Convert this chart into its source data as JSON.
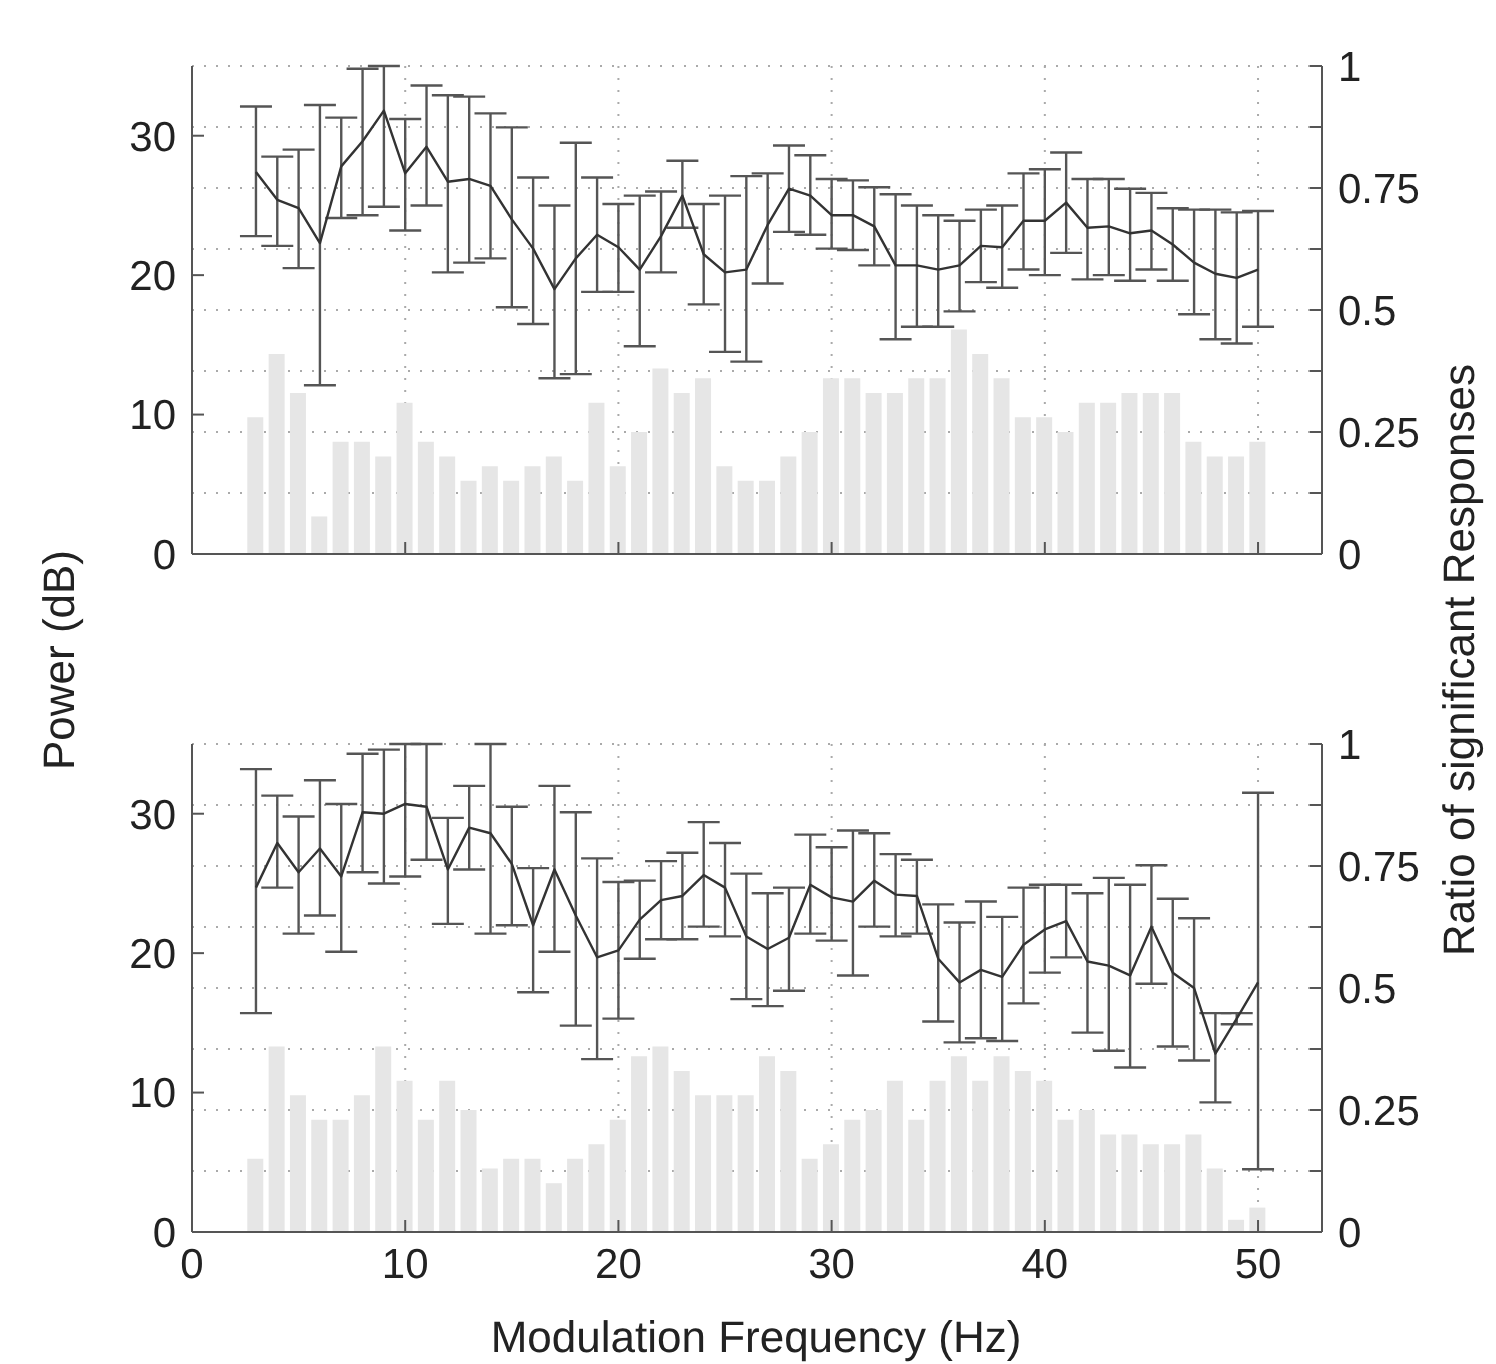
{
  "chart_data": [
    {
      "type": "bar",
      "ylabel": "Power (dB)",
      "y2label": "Ratio of significant Responses",
      "x": [
        3,
        4,
        5,
        6,
        7,
        8,
        9,
        10,
        11,
        12,
        13,
        14,
        15,
        16,
        17,
        18,
        19,
        20,
        21,
        22,
        23,
        24,
        25,
        26,
        27,
        28,
        29,
        30,
        31,
        32,
        33,
        34,
        35,
        36,
        37,
        38,
        39,
        40,
        41,
        42,
        43,
        44,
        45,
        46,
        47,
        48,
        49,
        50
      ],
      "xlim": [
        0,
        53
      ],
      "xticks": [
        0,
        10,
        20,
        30,
        40,
        50
      ],
      "ylim": [
        0,
        35
      ],
      "yticks": [
        0,
        10,
        20,
        30
      ],
      "y2lim": [
        0,
        1
      ],
      "y2ticks": [
        0,
        {
          "value": 0.125,
          "label": null
        },
        0.25,
        {
          "value": 0.375,
          "label": null
        },
        0.5,
        {
          "value": 0.625,
          "label": null
        },
        0.75,
        {
          "value": 0.875,
          "label": null
        },
        1
      ],
      "grid": true,
      "tick_labels": "y",
      "marker": "none",
      "line_style": "solid",
      "series": [
        {
          "axis": "y2",
          "color": "#e6e6e6",
          "values": [
            0.28,
            0.41,
            0.33,
            0.077,
            0.23,
            0.23,
            0.2,
            0.31,
            0.23,
            0.2,
            0.15,
            0.18,
            0.15,
            0.18,
            0.2,
            0.15,
            0.31,
            0.18,
            0.25,
            0.38,
            0.33,
            0.36,
            0.18,
            0.15,
            0.15,
            0.2,
            0.25,
            0.36,
            0.36,
            0.33,
            0.33,
            0.36,
            0.36,
            0.46,
            0.41,
            0.36,
            0.28,
            0.28,
            0.25,
            0.31,
            0.31,
            0.33,
            0.33,
            0.33,
            0.23,
            0.2,
            0.2,
            0.23
          ]
        },
        {
          "type": "line",
          "color": "#333333",
          "values": [
            27.4,
            25.4,
            24.8,
            22.3,
            27.8,
            29.6,
            31.8,
            27.3,
            29.2,
            26.7,
            26.9,
            26.4,
            24.0,
            21.9,
            19.0,
            21.2,
            22.9,
            22.0,
            20.4,
            22.8,
            25.7,
            21.5,
            20.2,
            20.4,
            23.6,
            26.2,
            25.7,
            24.3,
            24.3,
            23.5,
            20.7,
            20.7,
            20.4,
            20.7,
            22.1,
            22.0,
            23.9,
            23.9,
            25.2,
            23.4,
            23.5,
            23.0,
            23.2,
            22.2,
            20.9,
            20.1,
            19.8,
            20.4
          ],
          "errors": [
            [
              22.8,
              32.1
            ],
            [
              22.1,
              28.5
            ],
            [
              20.5,
              29.0
            ],
            [
              12.1,
              32.2
            ],
            [
              24.1,
              31.3
            ],
            [
              24.3,
              34.8
            ],
            [
              24.9,
              35
            ],
            [
              23.2,
              31.2
            ],
            [
              25.0,
              33.6
            ],
            [
              20.2,
              32.9
            ],
            [
              20.9,
              32.8
            ],
            [
              21.2,
              31.6
            ],
            [
              17.7,
              30.6
            ],
            [
              16.5,
              27.0
            ],
            [
              12.6,
              25.0
            ],
            [
              12.9,
              29.5
            ],
            [
              18.8,
              27.0
            ],
            [
              18.8,
              25.1
            ],
            [
              14.9,
              25.7
            ],
            [
              20.2,
              26.0
            ],
            [
              23.4,
              28.2
            ],
            [
              17.9,
              25.1
            ],
            [
              14.5,
              25.7
            ],
            [
              13.8,
              27.1
            ],
            [
              19.4,
              27.3
            ],
            [
              23.1,
              29.3
            ],
            [
              22.9,
              28.6
            ],
            [
              21.9,
              26.9
            ],
            [
              21.8,
              26.8
            ],
            [
              20.7,
              26.3
            ],
            [
              15.4,
              25.8
            ],
            [
              16.3,
              25.0
            ],
            [
              16.3,
              24.3
            ],
            [
              17.4,
              23.9
            ],
            [
              19.5,
              24.7
            ],
            [
              19.1,
              25.0
            ],
            [
              20.4,
              27.3
            ],
            [
              20.0,
              27.6
            ],
            [
              21.6,
              28.8
            ],
            [
              19.7,
              26.9
            ],
            [
              20.0,
              26.9
            ],
            [
              19.6,
              26.2
            ],
            [
              20.4,
              25.9
            ],
            [
              19.6,
              24.8
            ],
            [
              17.2,
              24.7
            ],
            [
              15.4,
              24.7
            ],
            [
              15.1,
              24.5
            ],
            [
              16.3,
              24.6
            ]
          ]
        }
      ]
    },
    {
      "type": "bar",
      "xlabel": "Modulation Frequency (Hz)",
      "x": [
        3,
        4,
        5,
        6,
        7,
        8,
        9,
        10,
        11,
        12,
        13,
        14,
        15,
        16,
        17,
        18,
        19,
        20,
        21,
        22,
        23,
        24,
        25,
        26,
        27,
        28,
        29,
        30,
        31,
        32,
        33,
        34,
        35,
        36,
        37,
        38,
        39,
        40,
        41,
        42,
        43,
        44,
        45,
        46,
        47,
        48,
        49,
        50
      ],
      "xlim": [
        0,
        53
      ],
      "xticks": [
        0,
        10,
        20,
        30,
        40,
        50
      ],
      "ylim": [
        0,
        35
      ],
      "yticks": [
        0,
        10,
        20,
        30
      ],
      "y2lim": [
        0,
        1
      ],
      "y2ticks": [
        0,
        {
          "value": 0.125,
          "label": null
        },
        0.25,
        {
          "value": 0.375,
          "label": null
        },
        0.5,
        {
          "value": 0.625,
          "label": null
        },
        0.75,
        {
          "value": 0.875,
          "label": null
        },
        1
      ],
      "grid": true,
      "marker": "none",
      "line_style": "solid",
      "series": [
        {
          "axis": "y2",
          "color": "#e6e6e6",
          "values": [
            0.15,
            0.38,
            0.28,
            0.23,
            0.23,
            0.28,
            0.38,
            0.31,
            0.23,
            0.31,
            0.25,
            0.13,
            0.15,
            0.15,
            0.1,
            0.15,
            0.18,
            0.23,
            0.36,
            0.38,
            0.33,
            0.28,
            0.28,
            0.28,
            0.36,
            0.33,
            0.15,
            0.18,
            0.23,
            0.25,
            0.31,
            0.23,
            0.31,
            0.36,
            0.31,
            0.36,
            0.33,
            0.31,
            0.23,
            0.25,
            0.2,
            0.2,
            0.18,
            0.18,
            0.2,
            0.13,
            0.025,
            0.05
          ]
        },
        {
          "type": "line",
          "color": "#333333",
          "values": [
            24.7,
            27.9,
            25.8,
            27.5,
            25.5,
            30.1,
            30.0,
            30.7,
            30.5,
            26.0,
            29.0,
            28.6,
            26.4,
            22.0,
            26.0,
            22.7,
            19.7,
            20.2,
            22.4,
            23.8,
            24.1,
            25.6,
            24.7,
            21.2,
            20.3,
            21.1,
            24.9,
            24.0,
            23.7,
            25.2,
            24.2,
            24.1,
            19.6,
            17.9,
            18.8,
            18.3,
            20.6,
            21.7,
            22.3,
            19.4,
            19.1,
            18.4,
            21.9,
            18.6,
            17.5,
            12.8,
            15.3,
            17.9
          ],
          "errors": [
            [
              15.7,
              33.2
            ],
            [
              24.7,
              31.3
            ],
            [
              21.4,
              29.8
            ],
            [
              22.7,
              32.4
            ],
            [
              20.1,
              30.7
            ],
            [
              25.8,
              34.3
            ],
            [
              25.0,
              34.6
            ],
            [
              25.5,
              35
            ],
            [
              26.7,
              35
            ],
            [
              22.1,
              29.7
            ],
            [
              26.0,
              32.0
            ],
            [
              21.4,
              35
            ],
            [
              22.0,
              30.5
            ],
            [
              17.2,
              26.1
            ],
            [
              20.1,
              32.0
            ],
            [
              14.8,
              30.1
            ],
            [
              12.4,
              26.8
            ],
            [
              15.3,
              25.1
            ],
            [
              19.6,
              25.2
            ],
            [
              21.0,
              26.6
            ],
            [
              21.0,
              27.2
            ],
            [
              21.9,
              29.4
            ],
            [
              21.2,
              27.9
            ],
            [
              16.7,
              25.7
            ],
            [
              16.2,
              24.3
            ],
            [
              17.3,
              24.7
            ],
            [
              21.4,
              28.5
            ],
            [
              20.9,
              27.6
            ],
            [
              18.4,
              28.8
            ],
            [
              21.9,
              28.6
            ],
            [
              21.2,
              27.1
            ],
            [
              21.4,
              26.7
            ],
            [
              15.1,
              23.5
            ],
            [
              13.6,
              22.2
            ],
            [
              13.9,
              23.7
            ],
            [
              13.7,
              22.6
            ],
            [
              16.4,
              24.7
            ],
            [
              18.6,
              24.9
            ],
            [
              19.7,
              24.9
            ],
            [
              14.3,
              24.3
            ],
            [
              13.0,
              25.4
            ],
            [
              11.8,
              24.9
            ],
            [
              17.8,
              26.3
            ],
            [
              13.3,
              23.9
            ],
            [
              12.3,
              22.5
            ],
            [
              9.3,
              15.7
            ],
            [
              14.9,
              15.7
            ],
            [
              4.5,
              31.5
            ]
          ]
        }
      ]
    }
  ]
}
